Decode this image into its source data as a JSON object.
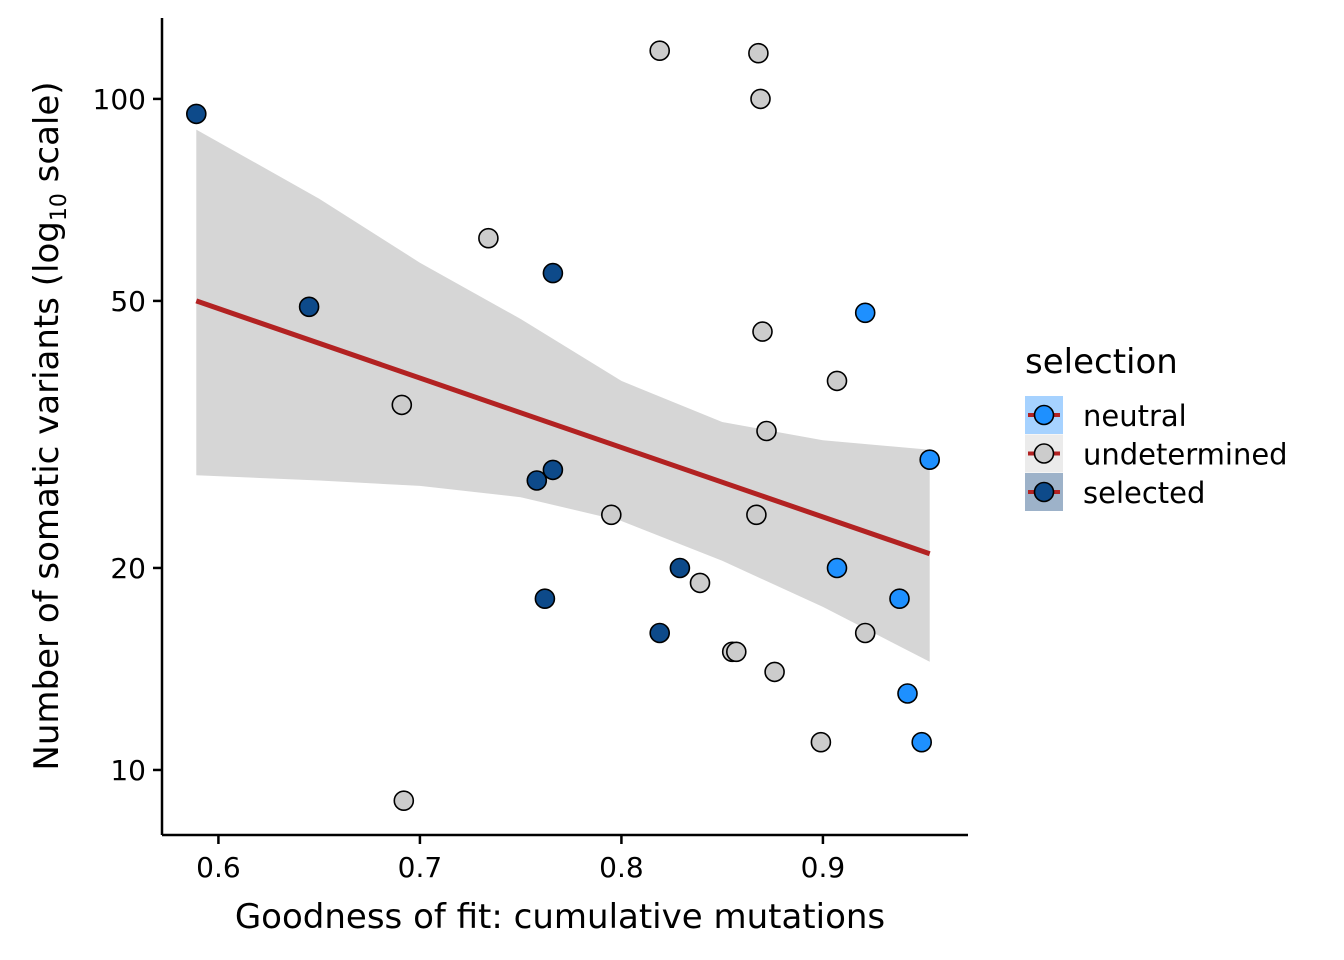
{
  "chart_data": {
    "type": "scatter",
    "title": "",
    "xlabel": "Goodness of fit: cumulative mutations",
    "ylabel_main": "Number of somatic variants (log",
    "ylabel_sub": "10",
    "ylabel_end": " scale)",
    "y_scale": "log10",
    "xlim": [
      0.572,
      0.972
    ],
    "ylim": [
      8.0,
      132.0
    ],
    "x_ticks": [
      {
        "value": 0.6,
        "label": "0.6"
      },
      {
        "value": 0.7,
        "label": "0.7"
      },
      {
        "value": 0.8,
        "label": "0.8"
      },
      {
        "value": 0.9,
        "label": "0.9"
      }
    ],
    "y_ticks": [
      {
        "value": 10,
        "label": "10"
      },
      {
        "value": 20,
        "label": "20"
      },
      {
        "value": 50,
        "label": "50"
      },
      {
        "value": 100,
        "label": "100"
      }
    ],
    "grid": false,
    "legend": {
      "title": "selection",
      "position": "right",
      "items": [
        {
          "label": "neutral",
          "color": "#1E90FF",
          "key_bg": "#A6D2FF"
        },
        {
          "label": "undetermined",
          "color": "#CCCCCC",
          "key_bg": "#EBEBEB"
        },
        {
          "label": "selected",
          "color": "#0D4A8A",
          "key_bg": "#9DB2C9"
        }
      ]
    },
    "colors": {
      "neutral": "#1E90FF",
      "undetermined": "#CCCCCC",
      "selected": "#0D4A8A",
      "fit_line": "#B22222",
      "ci_band": "#D6D6D6"
    },
    "series": [
      {
        "name": "neutral",
        "points": [
          {
            "x": 0.921,
            "y": 48
          },
          {
            "x": 0.953,
            "y": 29
          },
          {
            "x": 0.907,
            "y": 20
          },
          {
            "x": 0.938,
            "y": 18
          },
          {
            "x": 0.942,
            "y": 13
          },
          {
            "x": 0.949,
            "y": 11
          }
        ]
      },
      {
        "name": "undetermined",
        "points": [
          {
            "x": 0.819,
            "y": 118
          },
          {
            "x": 0.868,
            "y": 117
          },
          {
            "x": 0.869,
            "y": 100
          },
          {
            "x": 0.734,
            "y": 62
          },
          {
            "x": 0.87,
            "y": 45
          },
          {
            "x": 0.907,
            "y": 38
          },
          {
            "x": 0.691,
            "y": 35
          },
          {
            "x": 0.872,
            "y": 32
          },
          {
            "x": 0.795,
            "y": 24
          },
          {
            "x": 0.867,
            "y": 24
          },
          {
            "x": 0.839,
            "y": 19
          },
          {
            "x": 0.921,
            "y": 16
          },
          {
            "x": 0.855,
            "y": 15
          },
          {
            "x": 0.857,
            "y": 15
          },
          {
            "x": 0.876,
            "y": 14
          },
          {
            "x": 0.899,
            "y": 11
          },
          {
            "x": 0.692,
            "y": 9
          }
        ]
      },
      {
        "name": "selected",
        "points": [
          {
            "x": 0.589,
            "y": 95
          },
          {
            "x": 0.766,
            "y": 55
          },
          {
            "x": 0.645,
            "y": 49
          },
          {
            "x": 0.766,
            "y": 28
          },
          {
            "x": 0.758,
            "y": 27
          },
          {
            "x": 0.829,
            "y": 20
          },
          {
            "x": 0.762,
            "y": 18
          },
          {
            "x": 0.819,
            "y": 16
          }
        ]
      }
    ],
    "fit": {
      "x": [
        0.589,
        0.953
      ],
      "y": [
        50,
        21
      ]
    },
    "ci_band": {
      "x": [
        0.589,
        0.65,
        0.7,
        0.75,
        0.8,
        0.85,
        0.9,
        0.953
      ],
      "upper": [
        90,
        71,
        57,
        47,
        38,
        33,
        31,
        30
      ],
      "lower": [
        27.5,
        27,
        26.5,
        25.5,
        23.5,
        20.5,
        17.5,
        14.5
      ]
    }
  }
}
